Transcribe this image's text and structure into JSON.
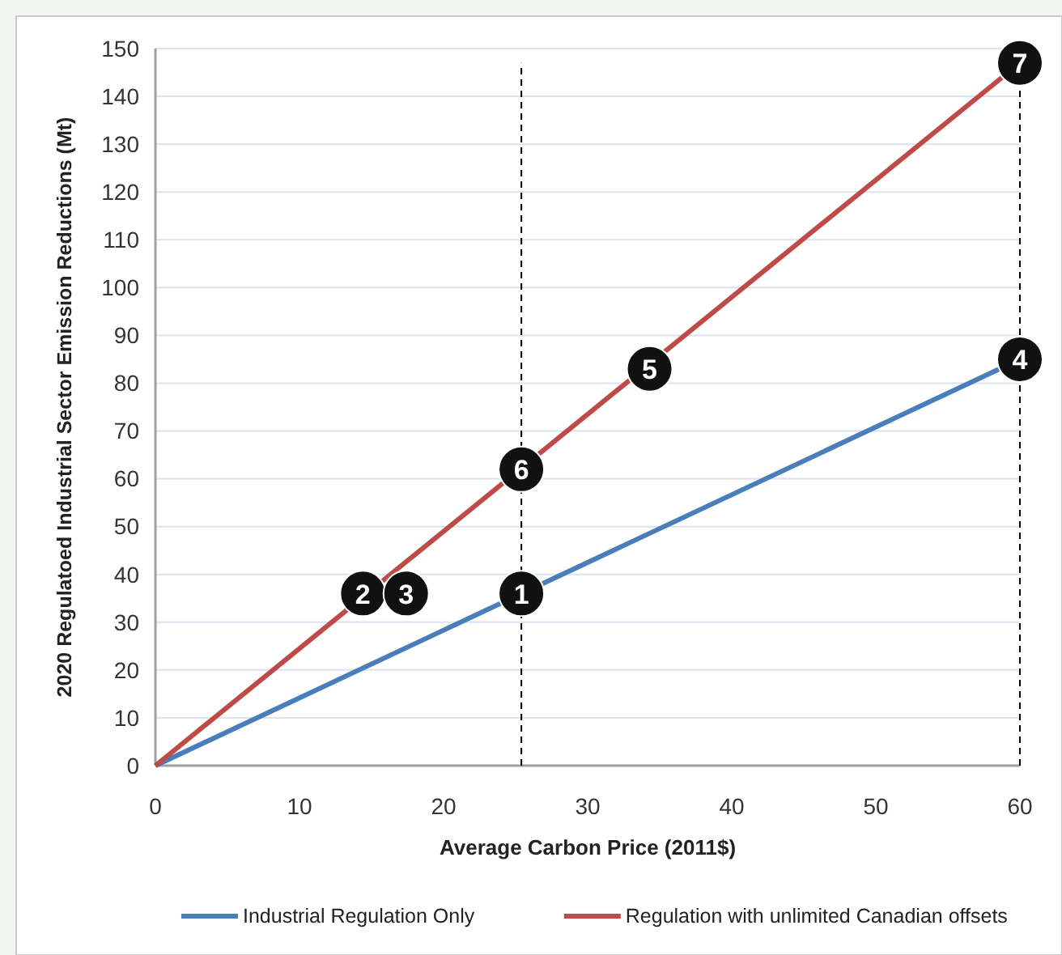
{
  "chart_data": {
    "type": "line",
    "xlabel": "Average Carbon Price (2011$)",
    "ylabel": "2020 Regulatoed Industrial Sector Emission Reductions (Mt)",
    "xlim": [
      0,
      60
    ],
    "xticks": [
      0,
      10,
      20,
      30,
      40,
      50,
      60
    ],
    "ylim": [
      0,
      150
    ],
    "yticks": [
      0,
      10,
      20,
      30,
      40,
      50,
      60,
      70,
      80,
      90,
      100,
      110,
      120,
      130,
      140,
      150
    ],
    "grid": "y",
    "legend": "bottom",
    "line_style": "solid",
    "x": [
      0,
      60
    ],
    "series": [
      {
        "name": "Industrial Regulation Only",
        "color": "#4a7ebb",
        "values": [
          0,
          85
        ]
      },
      {
        "name": "Regulation with unlimited Canadian offsets",
        "color": "#be4b48",
        "values": [
          0,
          147
        ]
      }
    ],
    "ref_lines": [
      {
        "axis": "x",
        "value": 25.4,
        "color": "#000000",
        "line_style": "dashed"
      },
      {
        "axis": "x",
        "value": 60,
        "color": "#000000",
        "line_style": "dashed"
      }
    ],
    "annotations": [
      {
        "text": "1",
        "x": 25.4,
        "y": 36
      },
      {
        "text": "2",
        "x": 14.4,
        "y": 36
      },
      {
        "text": "3",
        "x": 17.4,
        "y": 36
      },
      {
        "text": "4",
        "x": 60,
        "y": 85
      },
      {
        "text": "5",
        "x": 34.3,
        "y": 83
      },
      {
        "text": "6",
        "x": 25.4,
        "y": 62
      },
      {
        "text": "7",
        "x": 60,
        "y": 147
      }
    ]
  }
}
